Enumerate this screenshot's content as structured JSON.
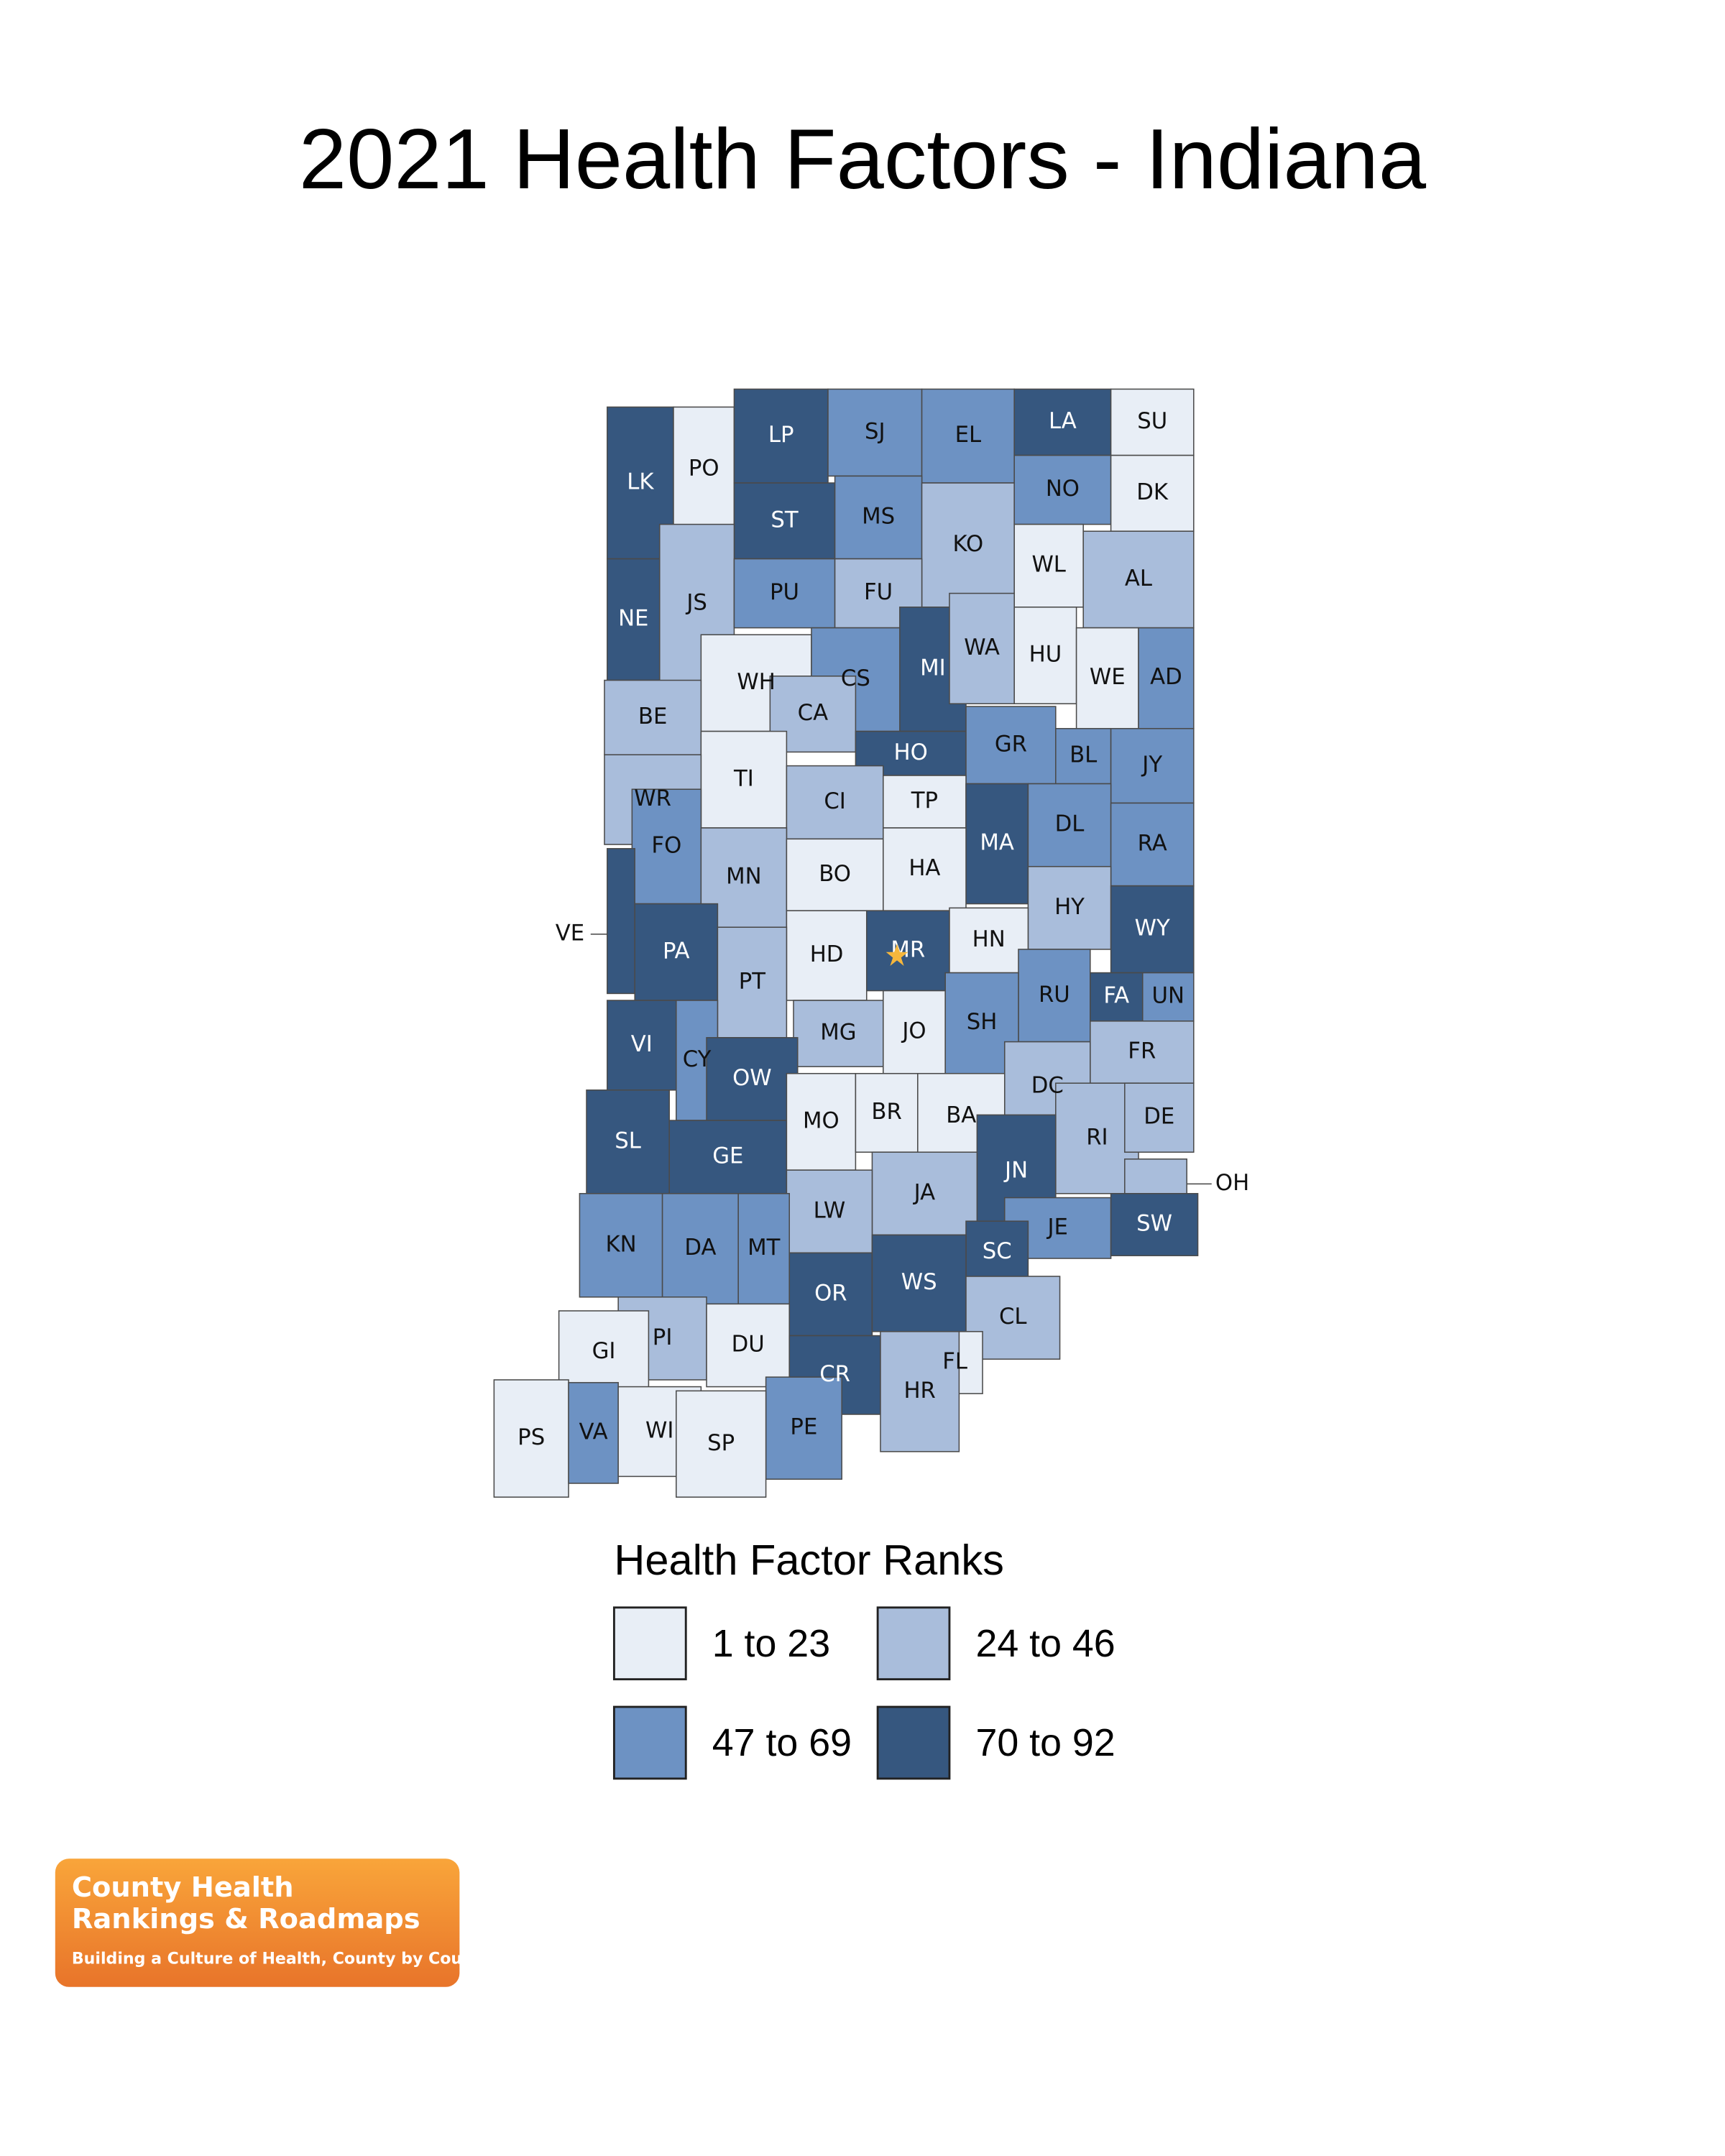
{
  "title": "2021 Health Factors - Indiana",
  "legend": {
    "title": "Health Factor Ranks",
    "items": [
      {
        "label": "1 to 23",
        "color": "#e8eef6"
      },
      {
        "label": "24 to 46",
        "color": "#a9bddb"
      },
      {
        "label": "47 to 69",
        "color": "#6d92c3"
      },
      {
        "label": "70 to 92",
        "color": "#36577f"
      }
    ]
  },
  "counties": [
    {
      "label": "LK",
      "class": 3
    },
    {
      "label": "PO",
      "class": 0
    },
    {
      "label": "LP",
      "class": 3
    },
    {
      "label": "SJ",
      "class": 2
    },
    {
      "label": "EL",
      "class": 2
    },
    {
      "label": "LA",
      "class": 3
    },
    {
      "label": "SU",
      "class": 0
    },
    {
      "label": "ST",
      "class": 3
    },
    {
      "label": "MS",
      "class": 2
    },
    {
      "label": "KO",
      "class": 1
    },
    {
      "label": "NO",
      "class": 2
    },
    {
      "label": "DK",
      "class": 0
    },
    {
      "label": "WL",
      "class": 0
    },
    {
      "label": "AL",
      "class": 1
    },
    {
      "label": "NE",
      "class": 3
    },
    {
      "label": "JS",
      "class": 1
    },
    {
      "label": "PU",
      "class": 2
    },
    {
      "label": "FU",
      "class": 1
    },
    {
      "label": "MI",
      "class": 3
    },
    {
      "label": "WA",
      "class": 1
    },
    {
      "label": "HU",
      "class": 0
    },
    {
      "label": "WE",
      "class": 0
    },
    {
      "label": "AD",
      "class": 2
    },
    {
      "label": "WH",
      "class": 0
    },
    {
      "label": "CS",
      "class": 2
    },
    {
      "label": "BE",
      "class": 1
    },
    {
      "label": "CA",
      "class": 1
    },
    {
      "label": "HO",
      "class": 3
    },
    {
      "label": "GR",
      "class": 2
    },
    {
      "label": "BL",
      "class": 2
    },
    {
      "label": "JY",
      "class": 2
    },
    {
      "label": "TI",
      "class": 0
    },
    {
      "label": "WR",
      "class": 1
    },
    {
      "label": "CI",
      "class": 1
    },
    {
      "label": "TP",
      "class": 0
    },
    {
      "label": "MA",
      "class": 3
    },
    {
      "label": "DL",
      "class": 2
    },
    {
      "label": "RA",
      "class": 2
    },
    {
      "label": "FO",
      "class": 2
    },
    {
      "label": "MN",
      "class": 1
    },
    {
      "label": "BO",
      "class": 0
    },
    {
      "label": "HA",
      "class": 0
    },
    {
      "label": "HY",
      "class": 1
    },
    {
      "label": "VE",
      "class": 3
    },
    {
      "label": "PA",
      "class": 3
    },
    {
      "label": "HD",
      "class": 0
    },
    {
      "label": "MR",
      "class": 3
    },
    {
      "label": "HN",
      "class": 0
    },
    {
      "label": "WY",
      "class": 3
    },
    {
      "label": "PT",
      "class": 1
    },
    {
      "label": "RU",
      "class": 2
    },
    {
      "label": "FA",
      "class": 3
    },
    {
      "label": "UN",
      "class": 2
    },
    {
      "label": "VI",
      "class": 3
    },
    {
      "label": "CY",
      "class": 2
    },
    {
      "label": "MG",
      "class": 1
    },
    {
      "label": "JO",
      "class": 0
    },
    {
      "label": "SH",
      "class": 2
    },
    {
      "label": "FR",
      "class": 1
    },
    {
      "label": "DC",
      "class": 1
    },
    {
      "label": "OW",
      "class": 3
    },
    {
      "label": "SL",
      "class": 3
    },
    {
      "label": "GE",
      "class": 3
    },
    {
      "label": "MO",
      "class": 0
    },
    {
      "label": "BR",
      "class": 0
    },
    {
      "label": "BA",
      "class": 0
    },
    {
      "label": "RI",
      "class": 1
    },
    {
      "label": "DE",
      "class": 1
    },
    {
      "label": "OH",
      "class": 1
    },
    {
      "label": "JN",
      "class": 3
    },
    {
      "label": "JA",
      "class": 1
    },
    {
      "label": "LW",
      "class": 1
    },
    {
      "label": "KN",
      "class": 2
    },
    {
      "label": "DA",
      "class": 2
    },
    {
      "label": "MT",
      "class": 2
    },
    {
      "label": "JE",
      "class": 2
    },
    {
      "label": "SW",
      "class": 3
    },
    {
      "label": "SC",
      "class": 3
    },
    {
      "label": "OR",
      "class": 3
    },
    {
      "label": "WS",
      "class": 3
    },
    {
      "label": "CL",
      "class": 1
    },
    {
      "label": "PI",
      "class": 1
    },
    {
      "label": "DU",
      "class": 0
    },
    {
      "label": "GI",
      "class": 0
    },
    {
      "label": "CR",
      "class": 3
    },
    {
      "label": "FL",
      "class": 0
    },
    {
      "label": "HR",
      "class": 1
    },
    {
      "label": "PE",
      "class": 2
    },
    {
      "label": "PS",
      "class": 0
    },
    {
      "label": "VA",
      "class": 2
    },
    {
      "label": "WI",
      "class": 0
    },
    {
      "label": "SP",
      "class": 0
    }
  ],
  "logo": {
    "line1": "County Health",
    "line2": "Rankings & Roadmaps",
    "tagline": "Building a Culture of Health, County by County"
  }
}
